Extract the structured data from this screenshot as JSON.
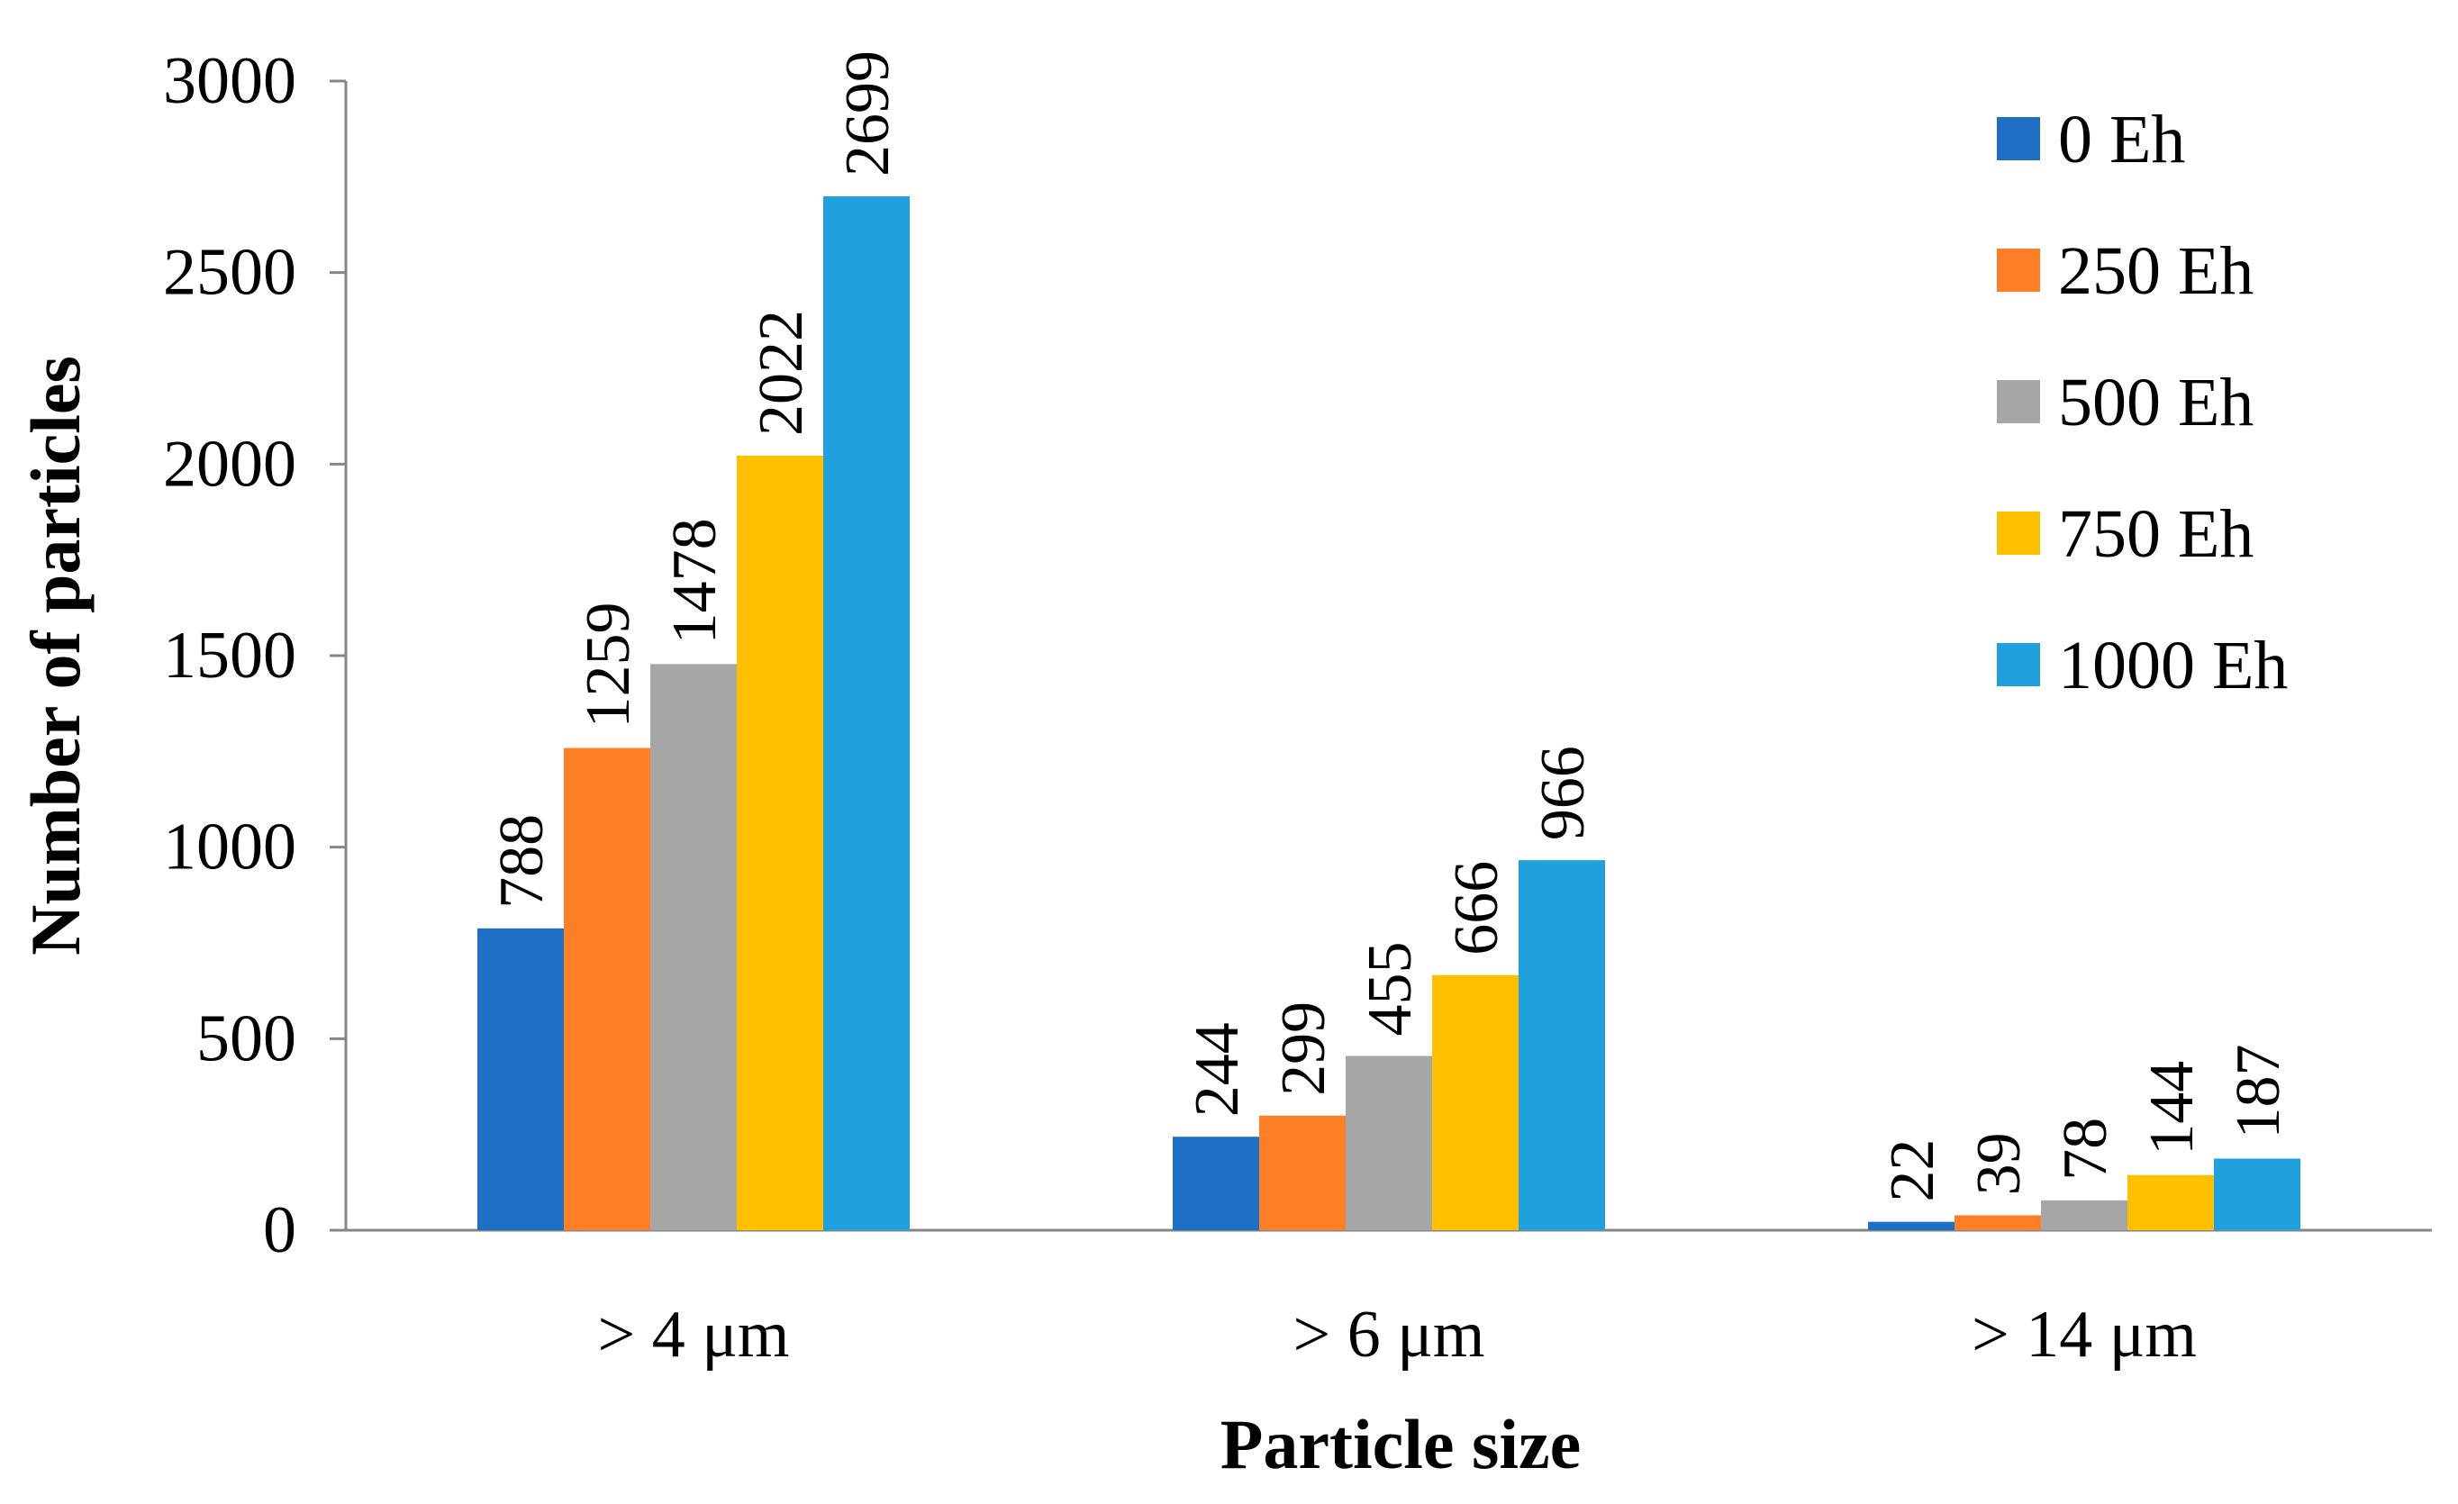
{
  "chart_data": {
    "type": "bar",
    "title": "",
    "xlabel": "Particle size",
    "ylabel": "Number of particles",
    "categories": [
      "> 4  μm",
      "> 6  μm",
      "> 14  μm"
    ],
    "series": [
      {
        "name": "0 Eh",
        "color": "#1F6FC5",
        "values": [
          788,
          244,
          22
        ]
      },
      {
        "name": "250 Eh",
        "color": "#FF7F27",
        "values": [
          1259,
          299,
          39
        ]
      },
      {
        "name": "500 Eh",
        "color": "#A6A6A6",
        "values": [
          1478,
          455,
          78
        ]
      },
      {
        "name": "750 Eh",
        "color": "#FFC000",
        "values": [
          2022,
          666,
          144
        ]
      },
      {
        "name": "1000 Eh",
        "color": "#20A0DC",
        "values": [
          2699,
          966,
          187
        ]
      }
    ],
    "ylim": [
      0,
      3000
    ],
    "yticks": [
      0,
      500,
      1000,
      1500,
      2000,
      2500,
      3000
    ],
    "grid": false,
    "legend_position": "top-right",
    "data_labels": true
  }
}
